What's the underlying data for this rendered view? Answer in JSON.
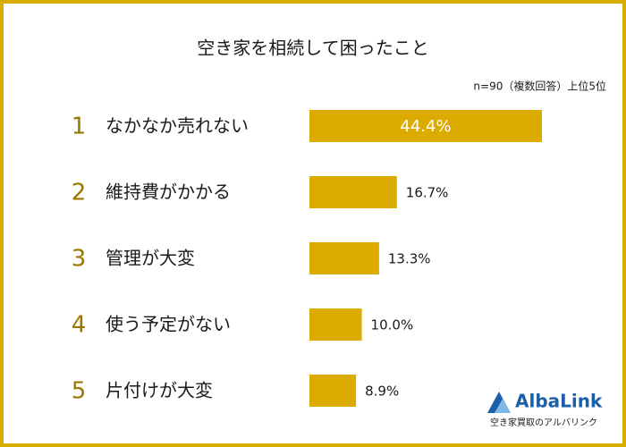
{
  "chart_data": {
    "type": "bar",
    "orientation": "horizontal",
    "title": "空き家を相続して困ったこと",
    "subtitle": "n=90（複数回答）上位5位",
    "ranks": [
      "1",
      "2",
      "3",
      "4",
      "5"
    ],
    "categories": [
      "なかなか売れない",
      "維持費がかかる",
      "管理が大変",
      "使う予定がない",
      "片付けが大変"
    ],
    "values": [
      44.4,
      16.7,
      13.3,
      10.0,
      8.9
    ],
    "value_labels": [
      "44.4%",
      "16.7%",
      "13.3%",
      "10.0%",
      "8.9%"
    ],
    "color": "#dcab00"
  },
  "logo": {
    "name": "AlbaLink",
    "tagline": "空き家買取のアルバリンク"
  }
}
